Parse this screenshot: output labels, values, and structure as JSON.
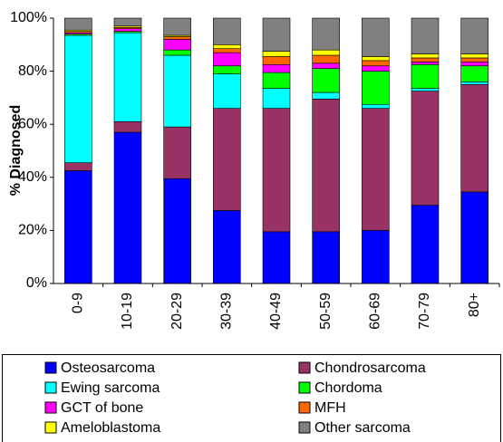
{
  "chart_data": {
    "type": "stacked_bar",
    "y_label": "% Diagnosed",
    "categories": [
      "0-9",
      "10-19",
      "20-29",
      "30-39",
      "40-49",
      "50-59",
      "60-69",
      "70-79",
      "80+"
    ],
    "series": [
      {
        "name": "Osteosarcoma",
        "color": "#0000ff",
        "values": [
          42.5,
          57,
          39.5,
          27.5,
          19.5,
          19.5,
          20,
          29.5,
          34.5
        ]
      },
      {
        "name": "Chondrosarcoma",
        "color": "#993366",
        "values": [
          3,
          4,
          19.5,
          38.5,
          46.5,
          50,
          46,
          43,
          40.5
        ]
      },
      {
        "name": "Ewing sarcoma",
        "color": "#00ffff",
        "values": [
          48,
          33.5,
          27,
          13,
          7.5,
          2.5,
          1.5,
          1,
          1
        ]
      },
      {
        "name": "Chordoma",
        "color": "#00ff00",
        "values": [
          0.5,
          0.5,
          2,
          3,
          6,
          9,
          12.5,
          9,
          6
        ]
      },
      {
        "name": "GCT of bone",
        "color": "#ff00ff",
        "values": [
          0.5,
          1,
          4,
          5,
          3,
          2,
          2,
          1,
          1.5
        ]
      },
      {
        "name": "MFH",
        "color": "#ff6600",
        "values": [
          0.5,
          0.5,
          1,
          1.5,
          3,
          3,
          2,
          1.5,
          1.5
        ]
      },
      {
        "name": "Ameloblastoma",
        "color": "#ffff00",
        "values": [
          0.5,
          0.5,
          0.5,
          1.5,
          2,
          2,
          1.5,
          1.5,
          1.5
        ]
      },
      {
        "name": "Other sarcoma",
        "color": "#808080",
        "values": [
          4.5,
          3,
          6.5,
          10,
          12.5,
          12,
          14.5,
          13.5,
          13.5
        ]
      }
    ],
    "ylim": [
      0,
      100
    ],
    "yticks": [
      {
        "value": 0,
        "label": "0%"
      },
      {
        "value": 20,
        "label": "20%"
      },
      {
        "value": 40,
        "label": "40%"
      },
      {
        "value": 60,
        "label": "60%"
      },
      {
        "value": 80,
        "label": "80%"
      },
      {
        "value": 100,
        "label": "100%"
      }
    ],
    "grid": false
  }
}
